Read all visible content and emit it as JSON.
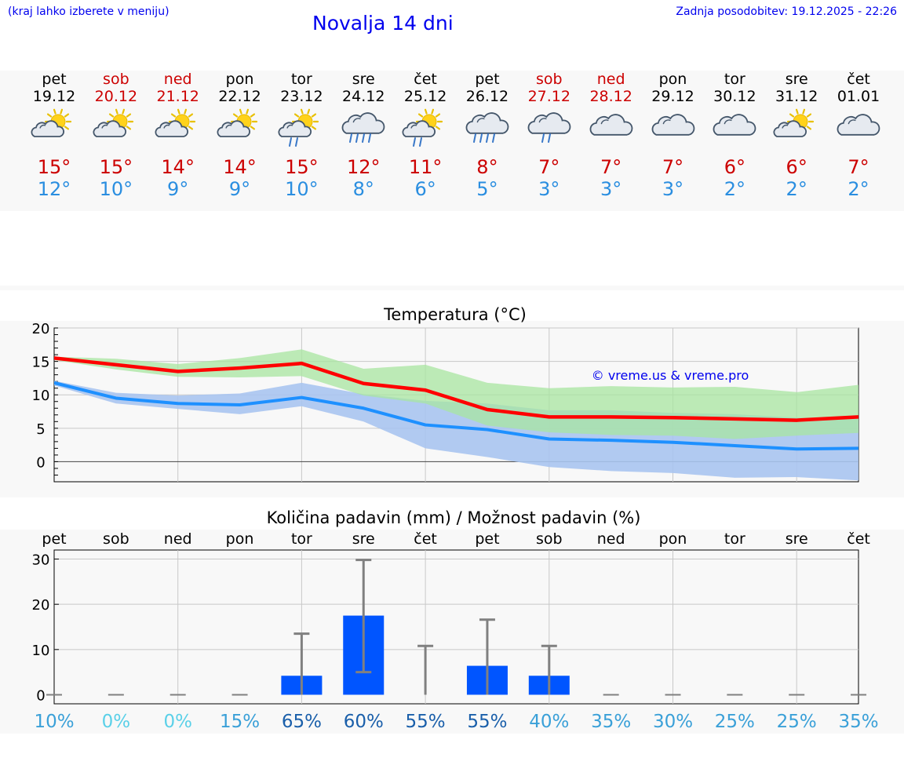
{
  "header": {
    "menu_note": "(kraj lahko izberete v meniju)",
    "title": "Novalja 14 dni",
    "updated": "Zadnja posodobitev: 19.12.2025 - 22:26"
  },
  "days": [
    {
      "name": "pet",
      "date": "19.12",
      "weekend": false,
      "icon": "sun-cloud-icon",
      "tmax": "15°",
      "tmin": "12°"
    },
    {
      "name": "sob",
      "date": "20.12",
      "weekend": true,
      "icon": "sun-cloud-icon",
      "tmax": "15°",
      "tmin": "10°"
    },
    {
      "name": "ned",
      "date": "21.12",
      "weekend": true,
      "icon": "sun-cloud-icon",
      "tmax": "14°",
      "tmin": "9°"
    },
    {
      "name": "pon",
      "date": "22.12",
      "weekend": false,
      "icon": "sun-cloud-icon",
      "tmax": "14°",
      "tmin": "9°"
    },
    {
      "name": "tor",
      "date": "23.12",
      "weekend": false,
      "icon": "sun-cloud-rain-icon",
      "tmax": "15°",
      "tmin": "10°"
    },
    {
      "name": "sre",
      "date": "24.12",
      "weekend": false,
      "icon": "cloud-heavy-rain-icon",
      "tmax": "12°",
      "tmin": "8°"
    },
    {
      "name": "čet",
      "date": "25.12",
      "weekend": false,
      "icon": "sun-cloud-rain-icon",
      "tmax": "11°",
      "tmin": "6°"
    },
    {
      "name": "pet",
      "date": "26.12",
      "weekend": false,
      "icon": "cloud-heavy-rain-icon",
      "tmax": "8°",
      "tmin": "5°"
    },
    {
      "name": "sob",
      "date": "27.12",
      "weekend": true,
      "icon": "cloud-rain-icon",
      "tmax": "7°",
      "tmin": "3°"
    },
    {
      "name": "ned",
      "date": "28.12",
      "weekend": true,
      "icon": "cloud-icon",
      "tmax": "7°",
      "tmin": "3°"
    },
    {
      "name": "pon",
      "date": "29.12",
      "weekend": false,
      "icon": "cloud-icon",
      "tmax": "7°",
      "tmin": "3°"
    },
    {
      "name": "tor",
      "date": "30.12",
      "weekend": false,
      "icon": "cloud-icon",
      "tmax": "6°",
      "tmin": "2°"
    },
    {
      "name": "sre",
      "date": "31.12",
      "weekend": false,
      "icon": "sun-cloud-icon",
      "tmax": "6°",
      "tmin": "2°"
    },
    {
      "name": "čet",
      "date": "01.01",
      "weekend": false,
      "icon": "cloud-icon",
      "tmax": "7°",
      "tmin": "2°"
    }
  ],
  "colors": {
    "max": "#ff0000",
    "min": "#1e90ff",
    "max_band": "#a8e6a0",
    "min_band": "#a8c4f0",
    "overlap_band": "#76bfa8",
    "bar": "#0055ff",
    "whisker": "#808080",
    "watermark": "#0000ee"
  },
  "chart_data": [
    {
      "type": "line",
      "title": "Temperatura (°C)",
      "watermark": "© vreme.us & vreme.pro",
      "ylim": [
        -3,
        20
      ],
      "yticks": [
        0,
        5,
        10,
        15,
        20
      ],
      "x": [
        "19.12",
        "20.12",
        "21.12",
        "22.12",
        "23.12",
        "24.12",
        "25.12",
        "26.12",
        "27.12",
        "28.12",
        "29.12",
        "30.12",
        "31.12",
        "01.01"
      ],
      "series": [
        {
          "name": "max",
          "values": [
            15.5,
            14.5,
            13.5,
            14.0,
            14.7,
            11.7,
            10.7,
            7.8,
            6.7,
            6.7,
            6.6,
            6.4,
            6.2,
            6.7
          ]
        },
        {
          "name": "min",
          "values": [
            11.8,
            9.5,
            8.7,
            8.5,
            9.6,
            8.0,
            5.5,
            4.8,
            3.4,
            3.2,
            2.9,
            2.4,
            1.9,
            2.0
          ]
        }
      ],
      "bands": [
        {
          "name": "max_range",
          "lower": [
            15.2,
            13.8,
            12.7,
            12.6,
            12.8,
            9.9,
            8.7,
            5.4,
            4.4,
            4.0,
            3.9,
            3.4,
            3.9,
            4.3
          ],
          "upper": [
            15.7,
            15.4,
            14.6,
            15.5,
            16.8,
            13.9,
            14.5,
            11.8,
            11.0,
            11.3,
            11.1,
            11.2,
            10.4,
            11.5
          ]
        },
        {
          "name": "min_range",
          "lower": [
            11.4,
            8.7,
            7.9,
            7.1,
            8.3,
            6.0,
            2.0,
            0.7,
            -0.8,
            -1.4,
            -1.7,
            -2.4,
            -2.3,
            -2.8
          ],
          "upper": [
            12.1,
            10.3,
            9.9,
            10.2,
            11.8,
            10.1,
            9.1,
            8.7,
            7.7,
            7.7,
            7.3,
            7.1,
            6.6,
            6.5
          ]
        }
      ]
    },
    {
      "type": "bar",
      "title": "Količina padavin (mm) / Možnost padavin (%)",
      "ylim": [
        -2,
        32
      ],
      "yticks": [
        0,
        10,
        20,
        30
      ],
      "categories": [
        "pet",
        "sob",
        "ned",
        "pon",
        "tor",
        "sre",
        "čet",
        "pet",
        "sob",
        "ned",
        "pon",
        "tor",
        "sre",
        "čet"
      ],
      "values": [
        0,
        0,
        0,
        0,
        4.2,
        17.5,
        0,
        6.4,
        4.2,
        0,
        0,
        0,
        0,
        0
      ],
      "whisker_low": [
        0,
        0,
        0,
        0,
        0,
        5.0,
        0,
        0,
        0,
        0,
        0,
        0,
        0,
        0
      ],
      "whisker_high": [
        0,
        0,
        0,
        0,
        13.5,
        29.8,
        10.8,
        16.6,
        10.8,
        0,
        0,
        0,
        0,
        0
      ],
      "probability": [
        "10%",
        "0%",
        "0%",
        "15%",
        "65%",
        "60%",
        "55%",
        "55%",
        "40%",
        "35%",
        "30%",
        "25%",
        "25%",
        "35%"
      ],
      "probability_values": [
        10,
        0,
        0,
        15,
        65,
        60,
        55,
        55,
        40,
        35,
        30,
        25,
        25,
        35
      ]
    }
  ]
}
